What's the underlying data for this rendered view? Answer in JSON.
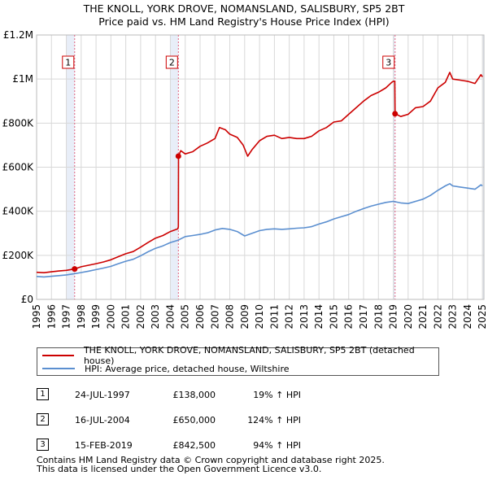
{
  "title_line1": "THE KNOLL, YORK DROVE, NOMANSLAND, SALISBURY, SP5 2BT",
  "title_line2": "Price paid vs. HM Land Registry's House Price Index (HPI)",
  "colors": {
    "property": "#cc0000",
    "hpi": "#5b8fd0",
    "shade": "#e8eef8",
    "vline": "#e0607e",
    "grid": "#d8d8d8"
  },
  "chart_data": {
    "type": "line",
    "title": "THE KNOLL, YORK DROVE, NOMANSLAND, SALISBURY, SP5 2BT — Price paid vs. HM Land Registry's House Price Index (HPI)",
    "xlabel": "",
    "ylabel": "",
    "xlim": [
      1995,
      2025.1
    ],
    "ylim": [
      0,
      1200000
    ],
    "grid": true,
    "y_ticks": [
      0,
      200000,
      400000,
      600000,
      800000,
      1000000,
      1200000
    ],
    "y_tick_labels": [
      "£0",
      "£200K",
      "£400K",
      "£600K",
      "£800K",
      "£1M",
      "£1.2M"
    ],
    "x_ticks": [
      1995,
      1996,
      1997,
      1998,
      1999,
      2000,
      2001,
      2002,
      2003,
      2004,
      2005,
      2006,
      2007,
      2008,
      2009,
      2010,
      2011,
      2012,
      2013,
      2014,
      2015,
      2016,
      2017,
      2018,
      2019,
      2020,
      2021,
      2022,
      2023,
      2024,
      2025
    ],
    "x_tick_labels": [
      "1995",
      "1996",
      "1997",
      "1998",
      "1999",
      "2000",
      "2001",
      "2002",
      "2003",
      "2004",
      "2005",
      "2006",
      "2007",
      "2008",
      "2009",
      "2010",
      "2011",
      "2012",
      "2013",
      "2014",
      "2015",
      "2016",
      "2017",
      "2018",
      "2019",
      "2020",
      "2021",
      "2022",
      "2023",
      "2024",
      "2025"
    ],
    "series": [
      {
        "name": "THE KNOLL, YORK DROVE, NOMANSLAND, SALISBURY, SP5 2BT (detached house)",
        "color": "#cc0000",
        "x": [
          1995.0,
          1995.5,
          1996.0,
          1996.5,
          1997.0,
          1997.56,
          1998.0,
          1998.5,
          1999.0,
          1999.5,
          2000.0,
          2000.5,
          2001.0,
          2001.5,
          2002.0,
          2002.5,
          2003.0,
          2003.5,
          2004.0,
          2004.5,
          2004.54,
          2004.55,
          2004.7,
          2005.0,
          2005.5,
          2006.0,
          2006.5,
          2007.0,
          2007.3,
          2007.7,
          2008.0,
          2008.5,
          2008.9,
          2009.2,
          2009.5,
          2010.0,
          2010.5,
          2011.0,
          2011.5,
          2012.0,
          2012.5,
          2013.0,
          2013.5,
          2014.0,
          2014.5,
          2015.0,
          2015.5,
          2016.0,
          2016.5,
          2017.0,
          2017.5,
          2018.0,
          2018.5,
          2018.9,
          2019.0,
          2019.1,
          2019.12,
          2019.13,
          2019.5,
          2020.0,
          2020.5,
          2021.0,
          2021.5,
          2022.0,
          2022.5,
          2022.8,
          2023.0,
          2023.5,
          2024.0,
          2024.5,
          2024.9,
          2025.0
        ],
        "values": [
          123000,
          121000,
          125000,
          129000,
          132000,
          138000,
          148000,
          155000,
          162000,
          170000,
          180000,
          194000,
          207000,
          217000,
          237000,
          258000,
          278000,
          290000,
          308000,
          320000,
          330000,
          650000,
          675000,
          660000,
          670000,
          695000,
          710000,
          730000,
          780000,
          770000,
          750000,
          735000,
          700000,
          650000,
          680000,
          720000,
          740000,
          745000,
          730000,
          735000,
          730000,
          730000,
          740000,
          765000,
          780000,
          805000,
          810000,
          840000,
          870000,
          900000,
          925000,
          940000,
          960000,
          985000,
          990000,
          990000,
          860000,
          842500,
          830000,
          840000,
          870000,
          875000,
          900000,
          960000,
          985000,
          1030000,
          1000000,
          995000,
          990000,
          980000,
          1020000,
          1010000
        ]
      },
      {
        "name": "HPI: Average price, detached house, Wiltshire",
        "color": "#5b8fd0",
        "x": [
          1995.0,
          1995.5,
          1996.0,
          1996.5,
          1997.0,
          1997.5,
          1998.0,
          1998.5,
          1999.0,
          1999.5,
          2000.0,
          2000.5,
          2001.0,
          2001.5,
          2002.0,
          2002.5,
          2003.0,
          2003.5,
          2004.0,
          2004.5,
          2005.0,
          2005.5,
          2006.0,
          2006.5,
          2007.0,
          2007.5,
          2008.0,
          2008.5,
          2009.0,
          2009.5,
          2010.0,
          2010.5,
          2011.0,
          2011.5,
          2012.0,
          2012.5,
          2013.0,
          2013.5,
          2014.0,
          2014.5,
          2015.0,
          2015.5,
          2016.0,
          2016.5,
          2017.0,
          2017.5,
          2018.0,
          2018.5,
          2019.0,
          2019.5,
          2020.0,
          2020.5,
          2021.0,
          2021.5,
          2022.0,
          2022.5,
          2022.8,
          2023.0,
          2023.5,
          2024.0,
          2024.5,
          2024.9,
          2025.0
        ],
        "values": [
          104000,
          102000,
          105000,
          108000,
          111000,
          116000,
          122000,
          128000,
          135000,
          142000,
          150000,
          162000,
          173000,
          182000,
          198000,
          216000,
          232000,
          243000,
          258000,
          268000,
          285000,
          290000,
          295000,
          302000,
          315000,
          322000,
          318000,
          308000,
          288000,
          300000,
          312000,
          318000,
          320000,
          318000,
          320000,
          323000,
          325000,
          330000,
          342000,
          352000,
          365000,
          375000,
          385000,
          400000,
          412000,
          423000,
          432000,
          440000,
          445000,
          438000,
          435000,
          445000,
          455000,
          472000,
          495000,
          515000,
          525000,
          515000,
          510000,
          505000,
          500000,
          520000,
          515000
        ]
      }
    ],
    "markers": [
      {
        "label": "1",
        "x": 1997.56,
        "value": 138000
      },
      {
        "label": "2",
        "x": 2004.54,
        "value": 650000
      },
      {
        "label": "3",
        "x": 2019.12,
        "value": 842500
      }
    ],
    "legend_position": "below-chart"
  },
  "legend": {
    "property_label": "THE KNOLL, YORK DROVE, NOMANSLAND, SALISBURY, SP5 2BT (detached house)",
    "hpi_label": "HPI: Average price, detached house, Wiltshire"
  },
  "transactions": [
    {
      "num": "1",
      "date": "24-JUL-1997",
      "price": "£138,000",
      "hpi": "19% ↑ HPI"
    },
    {
      "num": "2",
      "date": "16-JUL-2004",
      "price": "£650,000",
      "hpi": "124% ↑ HPI"
    },
    {
      "num": "3",
      "date": "15-FEB-2019",
      "price": "£842,500",
      "hpi": "94% ↑ HPI"
    }
  ],
  "footer": {
    "line1": "Contains HM Land Registry data © Crown copyright and database right 2025.",
    "line2": "This data is licensed under the Open Government Licence v3.0."
  }
}
